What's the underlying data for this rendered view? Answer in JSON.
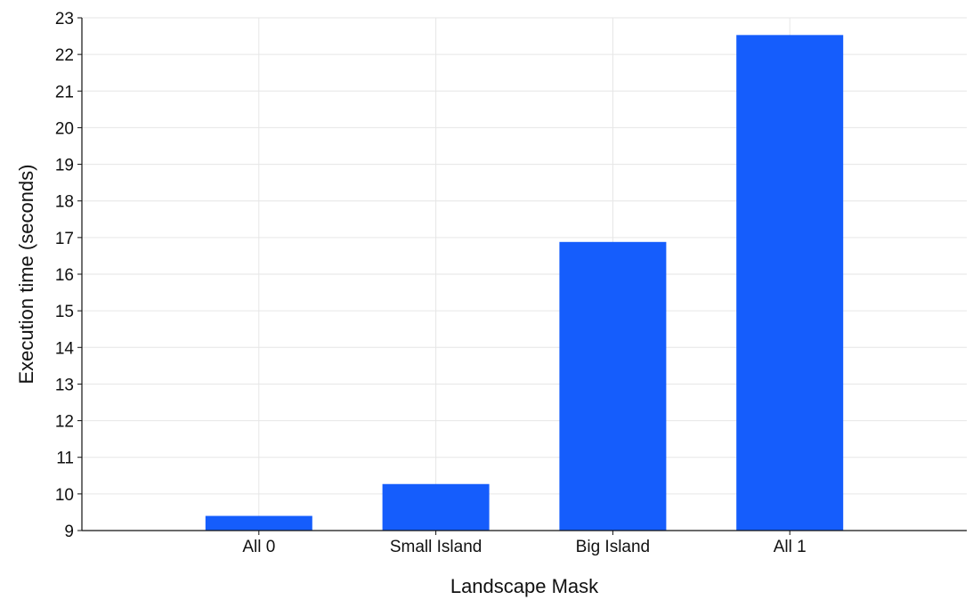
{
  "chart_data": {
    "type": "bar",
    "title": "",
    "xlabel": "Landscape Mask",
    "ylabel": "Execution time (seconds)",
    "categories": [
      "All 0",
      "Small Island",
      "Big Island",
      "All 1"
    ],
    "values": [
      9.4,
      10.27,
      16.88,
      22.53
    ],
    "ylim": [
      9,
      23
    ],
    "yticks": [
      9,
      10,
      11,
      12,
      13,
      14,
      15,
      16,
      17,
      18,
      19,
      20,
      21,
      22,
      23
    ],
    "grid": true,
    "legend": "none",
    "bar_color": "#155DFC"
  }
}
